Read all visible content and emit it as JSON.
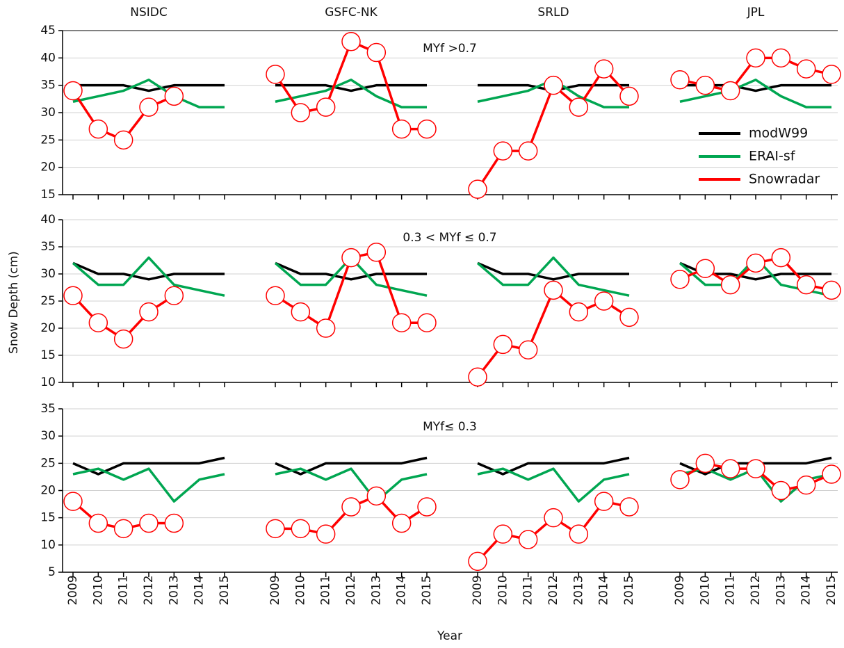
{
  "chart_data": {
    "type": "line",
    "ylabel": "Snow Depth (cm)",
    "xlabel": "Year",
    "products": [
      "NSIDC",
      "GSFC-NK",
      "SRLD",
      "JPL"
    ],
    "x": [
      2009,
      2010,
      2011,
      2012,
      2013,
      2014,
      2015
    ],
    "grid": true,
    "legend": "upper right",
    "series": [
      {
        "name": "modW99",
        "color": "#000000",
        "markers": false
      },
      {
        "name": "ERAI-sf",
        "color": "#00a651",
        "markers": false
      },
      {
        "name": "Snowradar",
        "color": "#ff0000",
        "markers": true
      }
    ],
    "rows": [
      {
        "annotation": "MYf >0.7",
        "ylim": [
          15,
          45
        ],
        "yticks": [
          15,
          20,
          25,
          30,
          35,
          40,
          45
        ],
        "values": [
          [
            [
              35,
              35,
              35,
              34,
              35,
              35,
              35
            ],
            [
              32,
              33,
              34,
              36,
              33,
              31,
              31
            ],
            [
              34,
              27,
              25,
              31,
              33,
              null,
              null
            ]
          ],
          [
            [
              35,
              35,
              35,
              34,
              35,
              35,
              35
            ],
            [
              32,
              33,
              34,
              36,
              33,
              31,
              31
            ],
            [
              37,
              30,
              31,
              43,
              41,
              27,
              27
            ]
          ],
          [
            [
              35,
              35,
              35,
              34,
              35,
              35,
              35
            ],
            [
              32,
              33,
              34,
              36,
              33,
              31,
              31
            ],
            [
              16,
              23,
              23,
              35,
              31,
              38,
              33
            ]
          ],
          [
            [
              35,
              35,
              35,
              34,
              35,
              35,
              35
            ],
            [
              32,
              33,
              34,
              36,
              33,
              31,
              31
            ],
            [
              36,
              35,
              34,
              40,
              40,
              38,
              37
            ]
          ]
        ]
      },
      {
        "annotation": "0.3 < MYf ≤ 0.7",
        "ylim": [
          10,
          40
        ],
        "yticks": [
          10,
          15,
          20,
          25,
          30,
          35,
          40
        ],
        "values": [
          [
            [
              32,
              30,
              30,
              29,
              30,
              30,
              30
            ],
            [
              32,
              28,
              28,
              33,
              28,
              27,
              26
            ],
            [
              26,
              21,
              18,
              23,
              26,
              null,
              null
            ]
          ],
          [
            [
              32,
              30,
              30,
              29,
              30,
              30,
              30
            ],
            [
              32,
              28,
              28,
              33,
              28,
              27,
              26
            ],
            [
              26,
              23,
              20,
              33,
              34,
              21,
              21
            ]
          ],
          [
            [
              32,
              30,
              30,
              29,
              30,
              30,
              30
            ],
            [
              32,
              28,
              28,
              33,
              28,
              27,
              26
            ],
            [
              11,
              17,
              16,
              27,
              23,
              25,
              22
            ]
          ],
          [
            [
              32,
              30,
              30,
              29,
              30,
              30,
              30
            ],
            [
              32,
              28,
              28,
              33,
              28,
              27,
              26
            ],
            [
              29,
              31,
              28,
              32,
              33,
              28,
              27
            ]
          ]
        ]
      },
      {
        "annotation": "MYf≤ 0.3",
        "ylim": [
          5,
          35
        ],
        "yticks": [
          5,
          10,
          15,
          20,
          25,
          30,
          35
        ],
        "values": [
          [
            [
              25,
              23,
              25,
              25,
              25,
              25,
              26
            ],
            [
              23,
              24,
              22,
              24,
              18,
              22,
              23
            ],
            [
              18,
              14,
              13,
              14,
              14,
              null,
              null
            ]
          ],
          [
            [
              25,
              23,
              25,
              25,
              25,
              25,
              26
            ],
            [
              23,
              24,
              22,
              24,
              18,
              22,
              23
            ],
            [
              13,
              13,
              12,
              17,
              19,
              14,
              17
            ]
          ],
          [
            [
              25,
              23,
              25,
              25,
              25,
              25,
              26
            ],
            [
              23,
              24,
              22,
              24,
              18,
              22,
              23
            ],
            [
              7,
              12,
              11,
              15,
              12,
              18,
              17
            ]
          ],
          [
            [
              25,
              23,
              25,
              25,
              25,
              25,
              26
            ],
            [
              23,
              24,
              22,
              24,
              18,
              22,
              23
            ],
            [
              22,
              25,
              24,
              24,
              20,
              21,
              23
            ]
          ]
        ]
      }
    ]
  }
}
